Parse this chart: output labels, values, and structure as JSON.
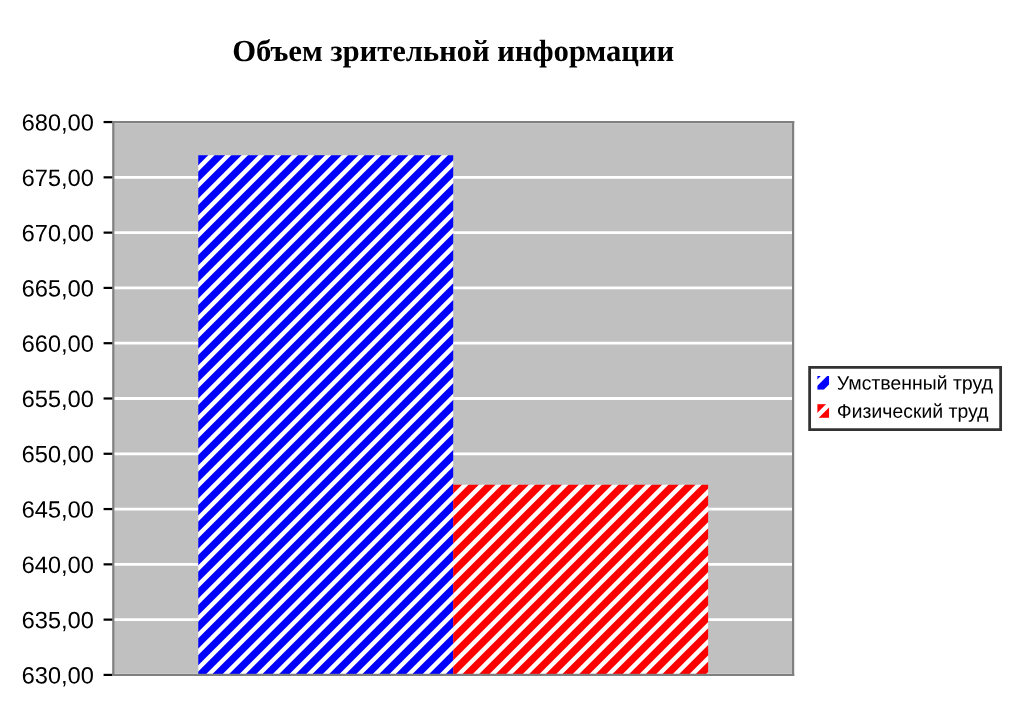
{
  "chart_data": {
    "type": "bar",
    "title": "Объем зрительной информации",
    "categories": [
      null
    ],
    "series": [
      {
        "name": "Умственный труд",
        "color": "#0000ff",
        "values": [
          677
        ]
      },
      {
        "name": "Физический труд",
        "color": "#ff0000",
        "values": [
          647.2
        ]
      }
    ],
    "ylim": [
      630,
      680
    ],
    "yticks": [
      {
        "value": 630,
        "label": "630,00"
      },
      {
        "value": 635,
        "label": "635,00"
      },
      {
        "value": 640,
        "label": "640,00"
      },
      {
        "value": 645,
        "label": "645,00"
      },
      {
        "value": 650,
        "label": "650,00"
      },
      {
        "value": 655,
        "label": "655,00"
      },
      {
        "value": 660,
        "label": "660,00"
      },
      {
        "value": 665,
        "label": "665,00"
      },
      {
        "value": 670,
        "label": "670,00"
      },
      {
        "value": 675,
        "label": "675,00"
      },
      {
        "value": 680,
        "label": "680,00"
      }
    ],
    "grid": "y",
    "legend": "right"
  }
}
